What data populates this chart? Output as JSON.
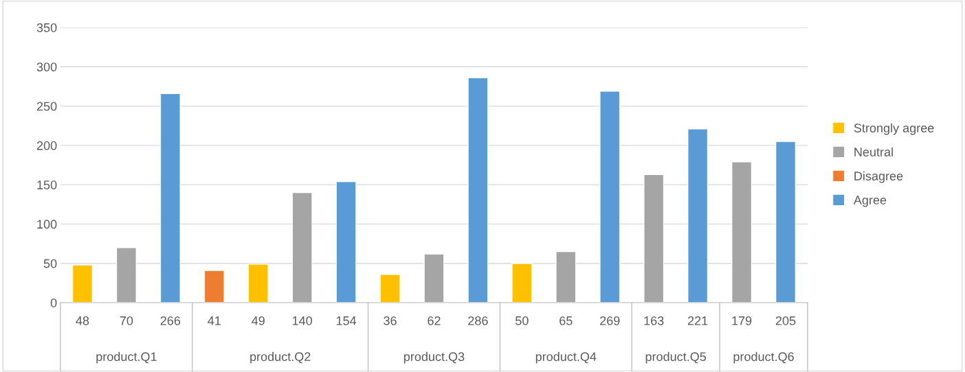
{
  "chart_data": {
    "type": "bar",
    "categories": [
      "48",
      "70",
      "266",
      "41",
      "49",
      "140",
      "154",
      "36",
      "62",
      "286",
      "50",
      "65",
      "269",
      "163",
      "221",
      "179",
      "205"
    ],
    "series": [
      {
        "name": "Strongly agree",
        "color": "#ffc000",
        "values": [
          48,
          null,
          null,
          null,
          49,
          null,
          null,
          36,
          null,
          null,
          50,
          null,
          null,
          null,
          null,
          null,
          null
        ]
      },
      {
        "name": "Neutral",
        "color": "#a5a5a5",
        "values": [
          null,
          70,
          null,
          null,
          null,
          140,
          null,
          null,
          62,
          null,
          null,
          65,
          null,
          163,
          null,
          179,
          null
        ]
      },
      {
        "name": "Disagree",
        "color": "#ed7d31",
        "values": [
          null,
          null,
          null,
          41,
          null,
          null,
          null,
          null,
          null,
          null,
          null,
          null,
          null,
          null,
          null,
          null,
          null
        ]
      },
      {
        "name": "Agree",
        "color": "#5b9bd5",
        "values": [
          null,
          null,
          266,
          null,
          null,
          null,
          154,
          null,
          null,
          286,
          null,
          null,
          269,
          null,
          221,
          null,
          205
        ]
      }
    ],
    "annotations": [
      "product.Q1",
      "product.Q2",
      "product.Q3",
      "product.Q4",
      "product.Q5",
      "product.Q6"
    ],
    "ylim": [
      0,
      350
    ],
    "yticks": [
      0,
      50,
      100,
      150,
      200,
      250,
      300,
      350
    ],
    "grid": "y",
    "legend": "right"
  }
}
